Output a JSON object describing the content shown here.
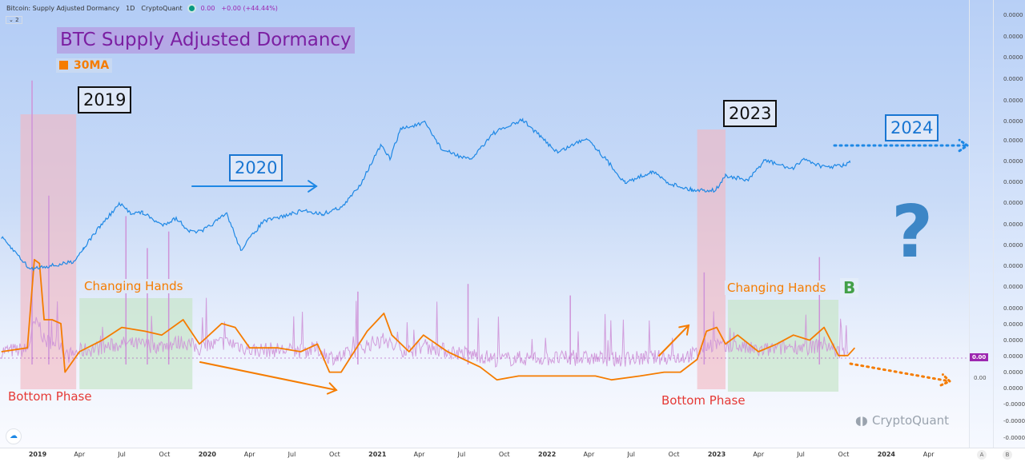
{
  "header": {
    "indicator": "Bitcoin: Supply Adjusted Dormancy",
    "interval": "1D",
    "source": "CryptoQuant",
    "value": "0.00",
    "change": "+0.00 (+44.44%)",
    "collapse": "2"
  },
  "annotations": {
    "title": "BTC Supply Adjusted Dormancy",
    "legend_ma": "30MA",
    "year_2019": "2019",
    "year_2020": "2020",
    "year_2023": "2023",
    "year_2024": "2024",
    "changing_hands_1": "Changing Hands",
    "changing_hands_2": "Changing Hands",
    "bottom_phase_1": "Bottom Phase",
    "bottom_phase_2": "Bottom Phase",
    "b_label": "B",
    "question": "?",
    "watermark": "CryptoQuant"
  },
  "right_axis": {
    "labels": [
      "0.0000",
      "0.0000",
      "0.0000",
      "0.0000",
      "0.0000",
      "0.0000",
      "0.0000",
      "0.0000",
      "0.0000",
      "0.0000",
      "0.0000",
      "0.0000",
      "0.0000",
      "0.0000",
      "0.0000",
      "0.0000",
      "0.0000",
      "0.0000",
      "0.0000",
      "0.0000",
      "-0.0000",
      "-0.0000",
      "-0.0000"
    ],
    "badge": "0.00",
    "secondary": "0.00",
    "scale_a": "A",
    "scale_b": "B"
  },
  "colors": {
    "price": "#1e88e5",
    "ma30": "#f57c00",
    "dormancy": "#ce93d8",
    "bottom_zone": "#f3b6c0",
    "changing_zone": "#c8e6c9",
    "title": "#7b1fa2"
  },
  "chart_data": {
    "type": "line",
    "x_ticks": [
      {
        "label": "2019",
        "date": "2019-01-01",
        "bold": true
      },
      {
        "label": "Apr",
        "date": "2019-04-01"
      },
      {
        "label": "Jul",
        "date": "2019-07-01"
      },
      {
        "label": "Oct",
        "date": "2019-10-01"
      },
      {
        "label": "2020",
        "date": "2020-01-01",
        "bold": true
      },
      {
        "label": "Apr",
        "date": "2020-04-01"
      },
      {
        "label": "Jul",
        "date": "2020-07-01"
      },
      {
        "label": "Oct",
        "date": "2020-10-01"
      },
      {
        "label": "2021",
        "date": "2021-01-01",
        "bold": true
      },
      {
        "label": "Apr",
        "date": "2021-04-01"
      },
      {
        "label": "Jul",
        "date": "2021-07-01"
      },
      {
        "label": "Oct",
        "date": "2021-10-01"
      },
      {
        "label": "2022",
        "date": "2022-01-01",
        "bold": true
      },
      {
        "label": "Apr",
        "date": "2022-04-01"
      },
      {
        "label": "Jul",
        "date": "2022-07-01"
      },
      {
        "label": "Oct",
        "date": "2022-10-01"
      },
      {
        "label": "2023",
        "date": "2023-01-01",
        "bold": true
      },
      {
        "label": "Apr",
        "date": "2023-04-01"
      },
      {
        "label": "Jul",
        "date": "2023-07-01"
      },
      {
        "label": "Oct",
        "date": "2023-10-01"
      },
      {
        "label": "2024",
        "date": "2024-01-01",
        "bold": true
      },
      {
        "label": "Apr",
        "date": "2024-04-01"
      }
    ],
    "y_scale_price": "log",
    "series": [
      {
        "key": "price",
        "points": [
          [
            "2018-10-15",
            6400
          ],
          [
            "2018-11-20",
            4500
          ],
          [
            "2018-12-15",
            3400
          ],
          [
            "2019-01-15",
            3600
          ],
          [
            "2019-02-15",
            3700
          ],
          [
            "2019-03-20",
            4000
          ],
          [
            "2019-04-10",
            5200
          ],
          [
            "2019-05-15",
            8000
          ],
          [
            "2019-06-26",
            12500
          ],
          [
            "2019-07-20",
            10500
          ],
          [
            "2019-08-15",
            10500
          ],
          [
            "2019-09-25",
            8200
          ],
          [
            "2019-10-26",
            9400
          ],
          [
            "2019-11-25",
            7200
          ],
          [
            "2019-12-20",
            7200
          ],
          [
            "2020-02-12",
            10300
          ],
          [
            "2020-03-13",
            5000
          ],
          [
            "2020-04-30",
            8800
          ],
          [
            "2020-06-01",
            9500
          ],
          [
            "2020-07-27",
            11000
          ],
          [
            "2020-09-05",
            10200
          ],
          [
            "2020-10-20",
            12000
          ],
          [
            "2020-11-25",
            18500
          ],
          [
            "2021-01-08",
            40000
          ],
          [
            "2021-01-28",
            31000
          ],
          [
            "2021-02-20",
            56000
          ],
          [
            "2021-04-14",
            63000
          ],
          [
            "2021-05-20",
            37000
          ],
          [
            "2021-07-20",
            30000
          ],
          [
            "2021-09-06",
            51000
          ],
          [
            "2021-11-10",
            67000
          ],
          [
            "2021-12-20",
            47000
          ],
          [
            "2022-01-24",
            35000
          ],
          [
            "2022-03-28",
            47000
          ],
          [
            "2022-05-12",
            29000
          ],
          [
            "2022-06-18",
            19000
          ],
          [
            "2022-08-15",
            24000
          ],
          [
            "2022-09-20",
            19000
          ],
          [
            "2022-11-09",
            16500
          ],
          [
            "2022-12-30",
            16500
          ],
          [
            "2023-01-20",
            22000
          ],
          [
            "2023-03-10",
            20000
          ],
          [
            "2023-04-14",
            30000
          ],
          [
            "2023-06-15",
            25000
          ],
          [
            "2023-07-05",
            31000
          ],
          [
            "2023-08-20",
            26000
          ],
          [
            "2023-10-01",
            27000
          ],
          [
            "2023-10-15",
            28500
          ]
        ]
      },
      {
        "key": "ma30",
        "name": "30MA",
        "points": [
          [
            "2018-10-15",
            0.25
          ],
          [
            "2018-12-10",
            0.28
          ],
          [
            "2018-12-25",
            0.97
          ],
          [
            "2019-01-05",
            0.94
          ],
          [
            "2019-01-15",
            0.5
          ],
          [
            "2019-02-01",
            0.5
          ],
          [
            "2019-02-20",
            0.47
          ],
          [
            "2019-03-01",
            0.09
          ],
          [
            "2019-04-01",
            0.25
          ],
          [
            "2019-05-20",
            0.34
          ],
          [
            "2019-07-01",
            0.44
          ],
          [
            "2019-08-20",
            0.41
          ],
          [
            "2019-09-25",
            0.38
          ],
          [
            "2019-11-10",
            0.5
          ],
          [
            "2019-12-15",
            0.31
          ],
          [
            "2020-02-01",
            0.47
          ],
          [
            "2020-03-01",
            0.44
          ],
          [
            "2020-04-01",
            0.28
          ],
          [
            "2020-06-01",
            0.28
          ],
          [
            "2020-07-20",
            0.25
          ],
          [
            "2020-08-25",
            0.31
          ],
          [
            "2020-09-20",
            0.09
          ],
          [
            "2020-10-15",
            0.09
          ],
          [
            "2020-12-10",
            0.41
          ],
          [
            "2021-01-15",
            0.55
          ],
          [
            "2021-02-01",
            0.38
          ],
          [
            "2021-03-10",
            0.25
          ],
          [
            "2021-04-10",
            0.38
          ],
          [
            "2021-06-01",
            0.25
          ],
          [
            "2021-08-10",
            0.13
          ],
          [
            "2021-09-15",
            0.03
          ],
          [
            "2021-11-01",
            0.06
          ],
          [
            "2022-02-01",
            0.06
          ],
          [
            "2022-04-15",
            0.06
          ],
          [
            "2022-05-20",
            0.03
          ],
          [
            "2022-07-20",
            0.06
          ],
          [
            "2022-09-10",
            0.09
          ],
          [
            "2022-10-15",
            0.09
          ],
          [
            "2022-11-20",
            0.19
          ],
          [
            "2022-12-10",
            0.41
          ],
          [
            "2023-01-01",
            0.44
          ],
          [
            "2023-01-20",
            0.31
          ],
          [
            "2023-02-15",
            0.38
          ],
          [
            "2023-04-01",
            0.25
          ],
          [
            "2023-05-10",
            0.31
          ],
          [
            "2023-06-15",
            0.38
          ],
          [
            "2023-07-20",
            0.34
          ],
          [
            "2023-08-20",
            0.44
          ],
          [
            "2023-09-20",
            0.22
          ],
          [
            "2023-10-10",
            0.22
          ],
          [
            "2023-10-25",
            0.28
          ]
        ]
      },
      {
        "key": "dormancy",
        "spikes": [
          [
            "2018-12-20",
            2.37
          ],
          [
            "2019-01-25",
            1.47
          ],
          [
            "2019-07-10",
            1.31
          ],
          [
            "2019-08-25",
            1.06
          ],
          [
            "2019-10-10",
            1.19
          ],
          [
            "2020-11-20",
            0.72
          ],
          [
            "2021-07-15",
            0.78
          ],
          [
            "2022-02-20",
            0.69
          ],
          [
            "2022-12-05",
            0.87
          ],
          [
            "2023-08-10",
            0.99
          ]
        ]
      }
    ],
    "regions": [
      {
        "label": "Bottom Phase",
        "from": "2018-11-25",
        "to": "2019-03-25"
      },
      {
        "label": "Changing Hands",
        "from": "2019-04-01",
        "to": "2019-11-30"
      },
      {
        "label": "Bottom Phase",
        "from": "2022-11-20",
        "to": "2023-01-20"
      },
      {
        "label": "Changing Hands",
        "from": "2023-01-25",
        "to": "2023-09-20"
      }
    ]
  }
}
